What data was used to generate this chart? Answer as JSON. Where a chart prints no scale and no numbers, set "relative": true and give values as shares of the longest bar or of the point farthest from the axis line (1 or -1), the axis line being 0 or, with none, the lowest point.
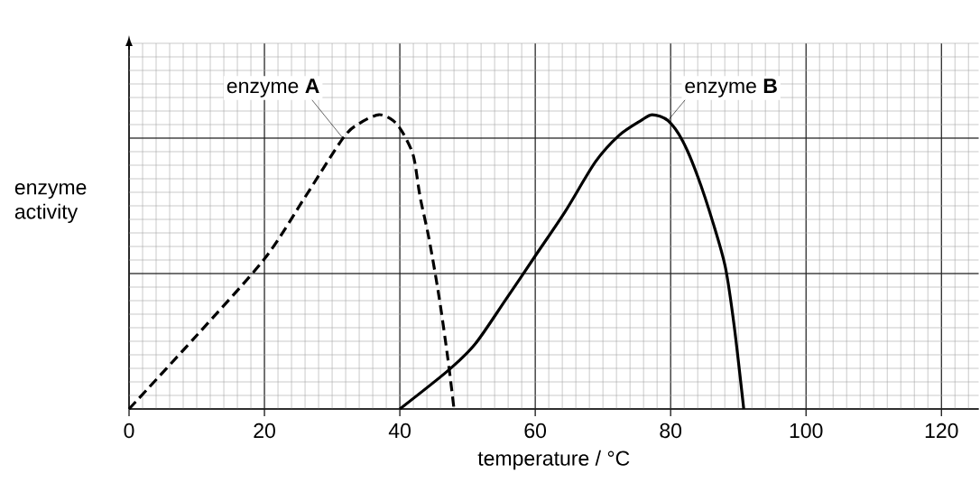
{
  "chart_data": {
    "type": "line",
    "relative": true,
    "xlabel": "temperature / °C",
    "ylabel": "enzyme activity",
    "xlim": [
      0,
      125.5
    ],
    "xticks": [
      0,
      20,
      40,
      60,
      80,
      100,
      120
    ],
    "grid": true,
    "series": [
      {
        "name": "enzyme **A**",
        "color": "#000000",
        "line_style": "dashed",
        "x": [
          0,
          10,
          20,
          26,
          31.6,
          34,
          36.9,
          39,
          40.4,
          42,
          43,
          44.3,
          45.8,
          47.1,
          48
        ],
        "values": [
          0,
          0.25,
          0.51,
          0.72,
          0.92,
          0.97,
          1.0,
          0.98,
          0.94,
          0.86,
          0.72,
          0.58,
          0.38,
          0.17,
          0
        ]
      },
      {
        "name": "enzyme **B**",
        "color": "#000000",
        "line_style": "solid",
        "x": [
          40,
          47.1,
          51.1,
          55.6,
          60,
          64.4,
          68.9,
          72.4,
          75.6,
          77.3,
          79.6,
          81.8,
          84,
          86.3,
          88.1,
          89.4,
          90.8
        ],
        "values": [
          0,
          0.13,
          0.22,
          0.37,
          0.52,
          0.67,
          0.84,
          0.93,
          0.98,
          1.0,
          0.98,
          0.91,
          0.79,
          0.63,
          0.48,
          0.28,
          0
        ]
      }
    ]
  }
}
